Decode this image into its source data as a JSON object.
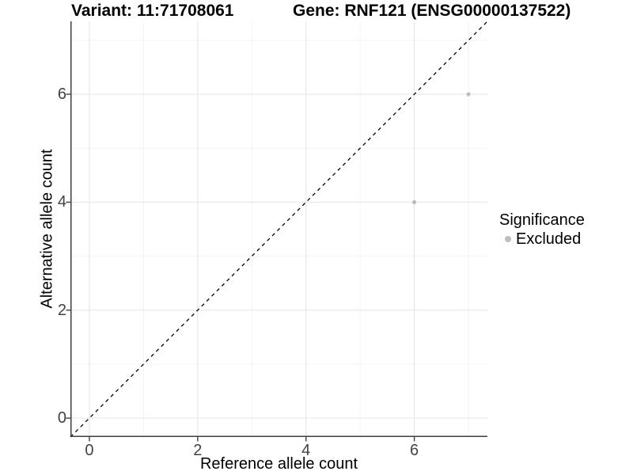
{
  "chart_data": {
    "type": "scatter",
    "title_left": "Variant: 11:71708061",
    "title_right": "Gene: RNF121 (ENSG00000137522)",
    "xlabel": "Reference allele count",
    "ylabel": "Alternative allele count",
    "xlim": [
      -0.35,
      7.35
    ],
    "ylim": [
      -0.35,
      7.35
    ],
    "xticks": [
      0,
      2,
      4,
      6
    ],
    "yticks": [
      0,
      2,
      4,
      6
    ],
    "minor_xticks": [
      1,
      3,
      5,
      7
    ],
    "minor_yticks": [
      1,
      3,
      5,
      7
    ],
    "grid": true,
    "series": [
      {
        "name": "Excluded",
        "color": "#bdbdbd",
        "points": [
          {
            "x": 6,
            "y": 4
          },
          {
            "x": 7,
            "y": 6
          }
        ]
      }
    ],
    "reference_line": {
      "slope": 1,
      "intercept": 0,
      "style": "dashed",
      "color": "#000000"
    },
    "legend": {
      "title": "Significance",
      "position": "right",
      "items": [
        {
          "label": "Excluded",
          "color": "#bdbdbd"
        }
      ]
    },
    "colors": {
      "background": "#ffffff",
      "grid_major": "#e6e6e6",
      "grid_minor": "#f0f0f0",
      "axis_line": "#3f3f3f",
      "tick_mark": "#3f3f3f",
      "tick_label": "#424242",
      "text": "#000000"
    }
  }
}
